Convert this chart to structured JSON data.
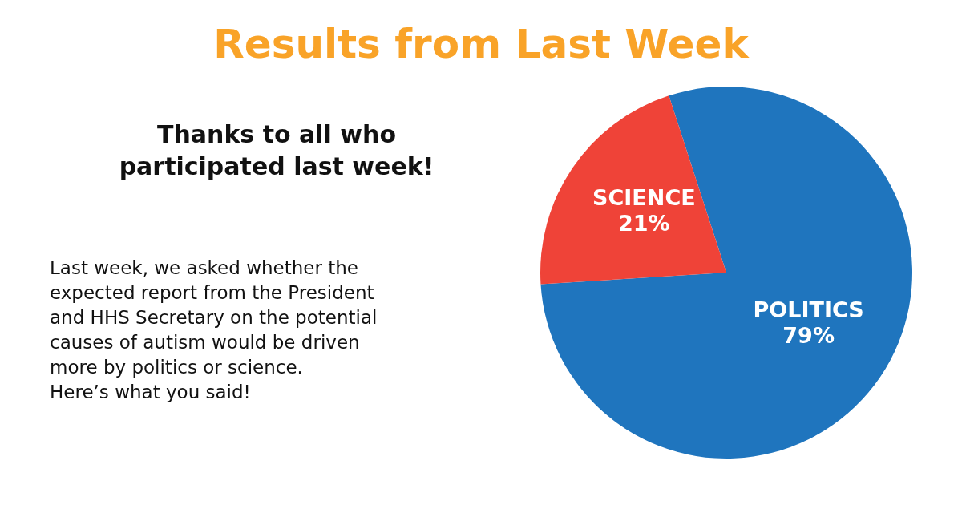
{
  "chart_data": {
    "type": "pie",
    "title": "Results from Last Week",
    "subtitle": "Thanks to all who participated last week!",
    "annotations": [
      "Last week, we asked whether the expected report from the President and HHS Secretary on the potential causes of autism would be driven more by politics or science. Here’s what you said!"
    ],
    "categories": [
      "POLITICS",
      "SCIENCE"
    ],
    "values": [
      79,
      21
    ],
    "colors": [
      "#1f75be",
      "#ef4338"
    ],
    "value_labels": [
      "79%",
      "21%"
    ]
  }
}
